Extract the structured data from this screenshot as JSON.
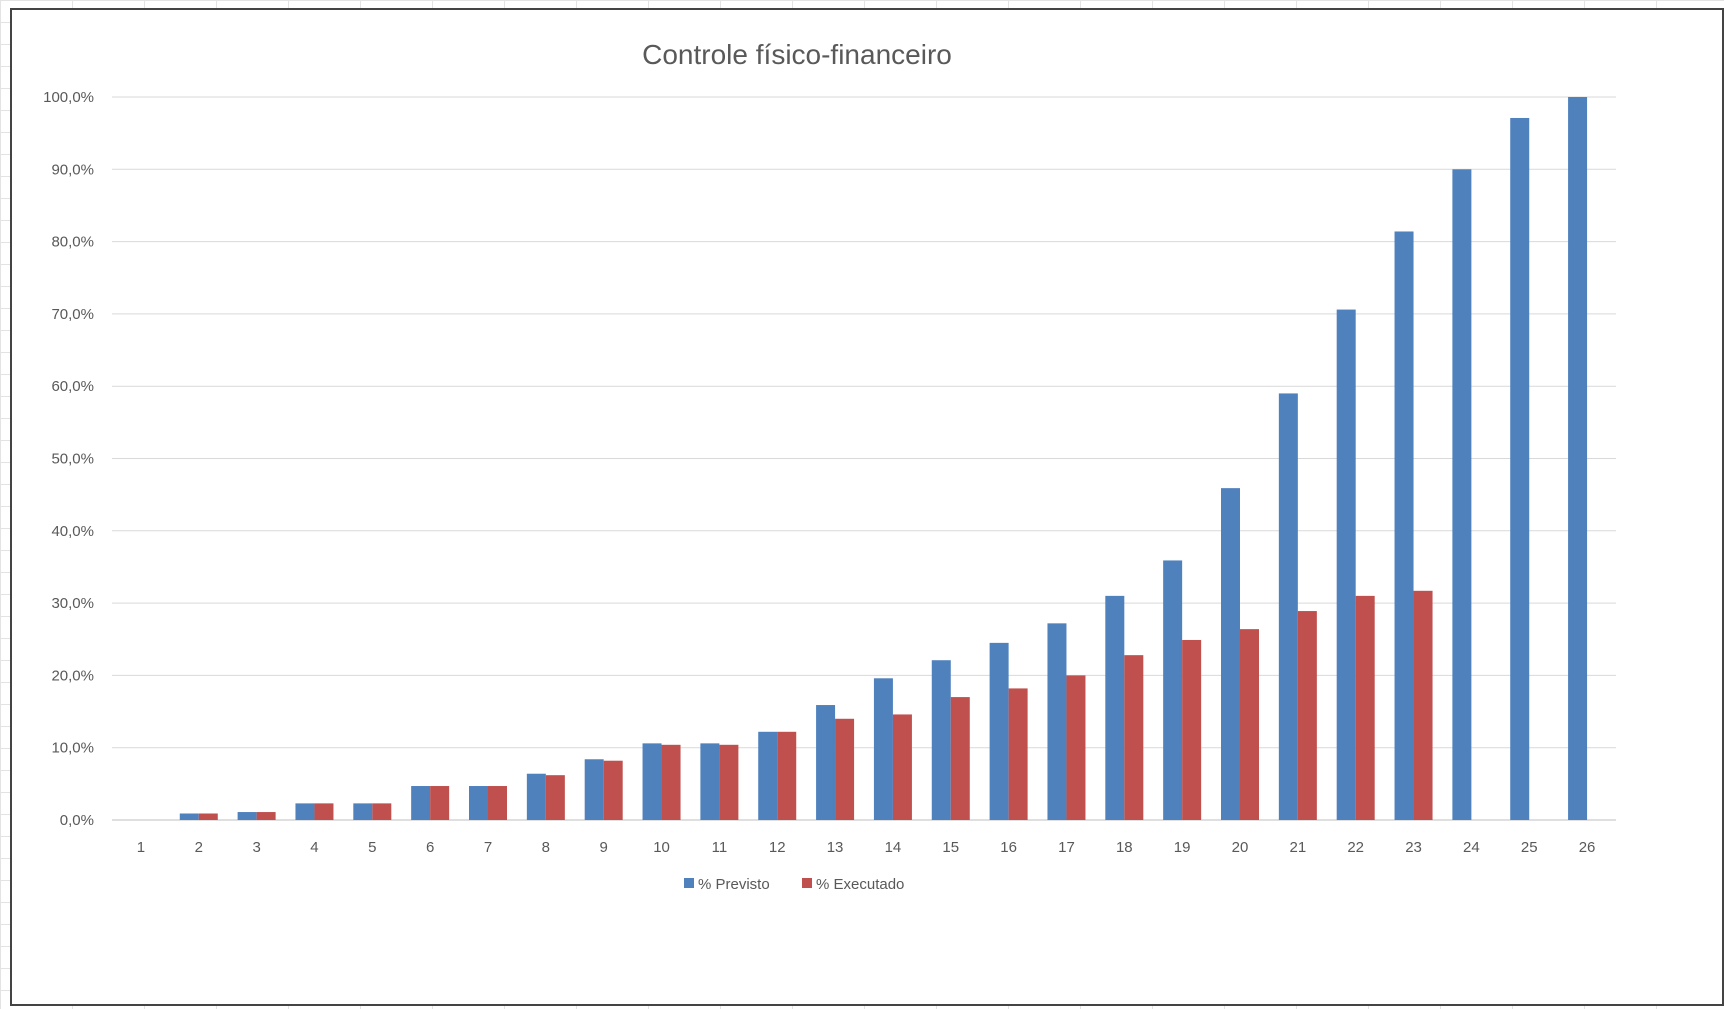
{
  "chart_data": {
    "type": "bar",
    "title": "Controle físico-financeiro",
    "xlabel": "",
    "ylabel": "",
    "ylim": [
      0,
      100
    ],
    "yticks": [
      "0,0%",
      "10,0%",
      "20,0%",
      "30,0%",
      "40,0%",
      "50,0%",
      "60,0%",
      "70,0%",
      "80,0%",
      "90,0%",
      "100,0%"
    ],
    "categories": [
      "1",
      "2",
      "3",
      "4",
      "5",
      "6",
      "7",
      "8",
      "9",
      "10",
      "11",
      "12",
      "13",
      "14",
      "15",
      "16",
      "17",
      "18",
      "19",
      "20",
      "21",
      "22",
      "23",
      "24",
      "25",
      "26"
    ],
    "series": [
      {
        "name": "% Previsto",
        "color": "#4f81bd",
        "values": [
          0,
          0.9,
          1.1,
          2.3,
          2.3,
          4.7,
          4.7,
          6.4,
          8.4,
          10.6,
          10.6,
          12.2,
          15.9,
          19.6,
          22.1,
          24.5,
          27.2,
          31.0,
          35.9,
          45.9,
          59.0,
          70.6,
          81.4,
          90.0,
          97.1,
          100.0
        ]
      },
      {
        "name": "% Executado",
        "color": "#c0504d",
        "values": [
          0,
          0.9,
          1.1,
          2.3,
          2.3,
          4.7,
          4.7,
          6.2,
          8.2,
          10.4,
          10.4,
          12.2,
          14.0,
          14.6,
          17.0,
          18.2,
          20.0,
          22.8,
          24.9,
          26.4,
          28.9,
          31.0,
          31.7,
          0,
          0,
          0
        ]
      }
    ],
    "grid": true,
    "legend": "bottom"
  }
}
